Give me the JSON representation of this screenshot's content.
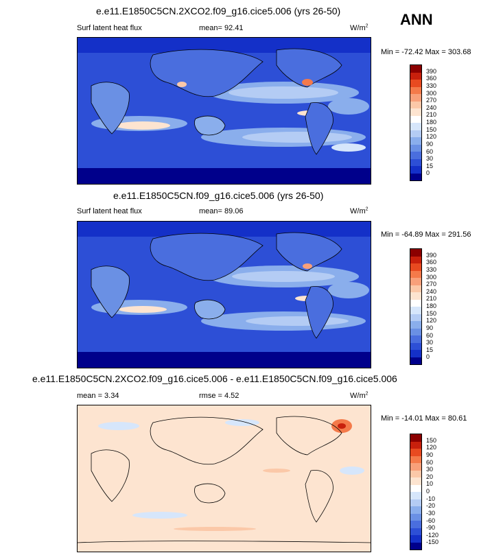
{
  "season": "ANN",
  "panels": [
    {
      "title": "e.e11.E1850C5CN.2XCO2.f09_g16.cice5.006 (yrs 26-50)",
      "left_label": "Surf latent heat flux",
      "mid_label": "mean=  92.41",
      "units_base": "W/m",
      "units_exp": "2",
      "minmax": "Min = -72.42 Max = 303.68",
      "colorbar": {
        "levels": [
          "390",
          "360",
          "330",
          "300",
          "270",
          "240",
          "210",
          "180",
          "150",
          "120",
          "90",
          "60",
          "30",
          "15",
          "0"
        ],
        "colors": [
          "#8b0000",
          "#c8200c",
          "#e84a20",
          "#f47a4a",
          "#f8a07a",
          "#fbc8a8",
          "#fde4d0",
          "#ffffff",
          "#d6e6fb",
          "#b4ccf4",
          "#8aaeec",
          "#6a90e4",
          "#4a6ede",
          "#2d4fd6",
          "#1430c8",
          "#00008b"
        ]
      }
    },
    {
      "title": "e.e11.E1850C5CN.f09_g16.cice5.006 (yrs 26-50)",
      "left_label": "Surf latent heat flux",
      "mid_label": "mean=  89.06",
      "units_base": "W/m",
      "units_exp": "2",
      "minmax": "Min = -64.89 Max = 291.56",
      "colorbar": {
        "levels": [
          "390",
          "360",
          "330",
          "300",
          "270",
          "240",
          "210",
          "180",
          "150",
          "120",
          "90",
          "60",
          "30",
          "15",
          "0"
        ],
        "colors": [
          "#8b0000",
          "#c8200c",
          "#e84a20",
          "#f47a4a",
          "#f8a07a",
          "#fbc8a8",
          "#fde4d0",
          "#ffffff",
          "#d6e6fb",
          "#b4ccf4",
          "#8aaeec",
          "#6a90e4",
          "#4a6ede",
          "#2d4fd6",
          "#1430c8",
          "#00008b"
        ]
      }
    },
    {
      "title": "e.e11.E1850C5CN.2XCO2.f09_g16.cice5.006 - e.e11.E1850C5CN.f09_g16.cice5.006",
      "left_label": "mean =  3.34",
      "mid_label": "rmse =  4.52",
      "units_base": "W/m",
      "units_exp": "2",
      "minmax": "Min = -14.01 Max = 80.61",
      "colorbar": {
        "levels": [
          "150",
          "120",
          "90",
          "60",
          "30",
          "20",
          "10",
          "0",
          "-10",
          "-20",
          "-30",
          "-60",
          "-90",
          "-120",
          "-150"
        ],
        "colors": [
          "#8b0000",
          "#c8200c",
          "#e84a20",
          "#f47a4a",
          "#f8a07a",
          "#fbc8a8",
          "#fde4d0",
          "#ffffff",
          "#d6e6fb",
          "#b4ccf4",
          "#8aaeec",
          "#6a90e4",
          "#4a6ede",
          "#2d4fd6",
          "#1430c8",
          "#00008b"
        ]
      }
    }
  ],
  "chart_data": [
    {
      "type": "heatmap",
      "title": "e.e11.E1850C5CN.2XCO2.f09_g16.cice5.006 (yrs 26-50)",
      "variable": "Surf latent heat flux",
      "units": "W/m2",
      "mean": 92.41,
      "min": -72.42,
      "max": 303.68,
      "contour_levels": [
        0,
        15,
        30,
        60,
        90,
        120,
        150,
        180,
        210,
        240,
        270,
        300,
        330,
        360,
        390
      ]
    },
    {
      "type": "heatmap",
      "title": "e.e11.E1850C5CN.f09_g16.cice5.006 (yrs 26-50)",
      "variable": "Surf latent heat flux",
      "units": "W/m2",
      "mean": 89.06,
      "min": -64.89,
      "max": 291.56,
      "contour_levels": [
        0,
        15,
        30,
        60,
        90,
        120,
        150,
        180,
        210,
        240,
        270,
        300,
        330,
        360,
        390
      ]
    },
    {
      "type": "heatmap",
      "title": "e.e11.E1850C5CN.2XCO2.f09_g16.cice5.006 - e.e11.E1850C5CN.f09_g16.cice5.006",
      "units": "W/m2",
      "mean": 3.34,
      "rmse": 4.52,
      "min": -14.01,
      "max": 80.61,
      "contour_levels": [
        -150,
        -120,
        -90,
        -60,
        -30,
        -20,
        -10,
        0,
        10,
        20,
        30,
        60,
        90,
        120,
        150
      ]
    }
  ]
}
